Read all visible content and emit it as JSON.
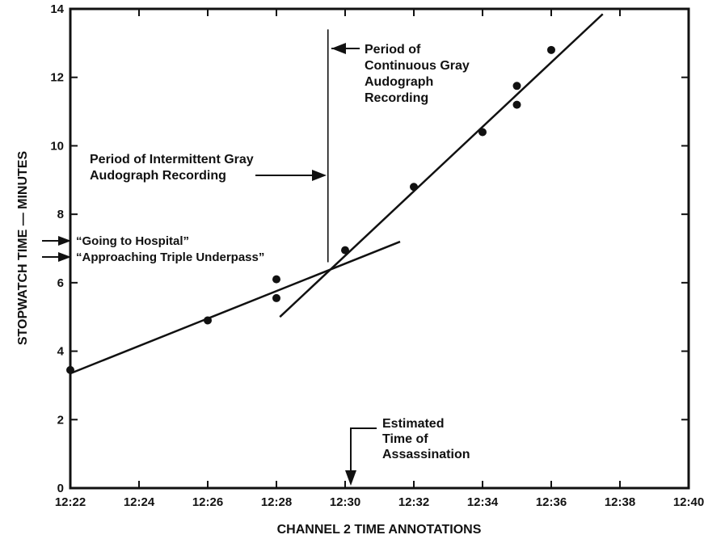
{
  "chart_data": {
    "type": "scatter",
    "title": "",
    "xlabel": "CHANNEL 2 TIME ANNOTATIONS",
    "ylabel": "STOPWATCH TIME — MINUTES",
    "xlim": [
      0,
      18
    ],
    "ylim": [
      0,
      14
    ],
    "x_ticks": [
      {
        "value": 0,
        "label": "12:22"
      },
      {
        "value": 2,
        "label": "12:24"
      },
      {
        "value": 4,
        "label": "12:26"
      },
      {
        "value": 6,
        "label": "12:28"
      },
      {
        "value": 8,
        "label": "12:30"
      },
      {
        "value": 10,
        "label": "12:32"
      },
      {
        "value": 12,
        "label": "12:34"
      },
      {
        "value": 14,
        "label": "12:36"
      },
      {
        "value": 16,
        "label": "12:38"
      },
      {
        "value": 18,
        "label": "12:40"
      }
    ],
    "y_ticks": [
      0,
      2,
      4,
      6,
      8,
      10,
      12,
      14
    ],
    "points": [
      {
        "x": 0,
        "y": 3.45
      },
      {
        "x": 4,
        "y": 4.9
      },
      {
        "x": 6,
        "y": 5.55
      },
      {
        "x": 6,
        "y": 6.1
      },
      {
        "x": 8,
        "y": 6.95
      },
      {
        "x": 10,
        "y": 8.8
      },
      {
        "x": 12,
        "y": 10.4
      },
      {
        "x": 13,
        "y": 11.2
      },
      {
        "x": 13,
        "y": 11.75
      },
      {
        "x": 14,
        "y": 12.8
      }
    ],
    "lines": [
      {
        "x": [
          0,
          9.6
        ],
        "y": [
          3.35,
          7.2
        ]
      },
      {
        "x": [
          6.1,
          15.5
        ],
        "y": [
          5.0,
          13.85
        ]
      }
    ],
    "vertical_line": {
      "x": 7.5,
      "y": [
        6.6,
        13.4
      ]
    },
    "annotations": [
      {
        "id": "continuous",
        "lines": [
          "Period of",
          "Continuous Gray",
          "Audograph",
          "Recording"
        ]
      },
      {
        "id": "intermittent",
        "lines": [
          "Period of Intermittent Gray",
          "Audograph Recording"
        ]
      },
      {
        "id": "hospital",
        "lines": [
          "“Going to Hospital”"
        ]
      },
      {
        "id": "underpass",
        "lines": [
          "“Approaching Triple Underpass”"
        ]
      },
      {
        "id": "assassination",
        "lines": [
          "Estimated",
          "Time of",
          "Assassination"
        ]
      }
    ]
  }
}
